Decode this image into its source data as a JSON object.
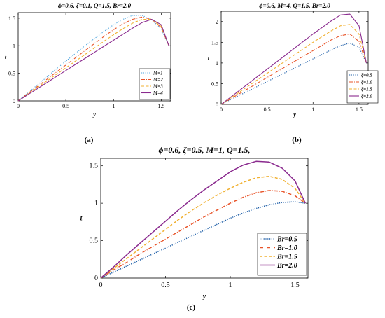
{
  "chart_data": [
    {
      "type": "line",
      "title": "ϕ=0.6, ζ=0.1, Q=1.5, Br=2.0",
      "xlabel": "y",
      "ylabel": "t",
      "xlim": [
        0,
        1.6
      ],
      "ylim": [
        0,
        1.6
      ],
      "xticks": [
        "0",
        "0.5",
        "1",
        "1.5"
      ],
      "yticks": [
        "0",
        "0.5",
        "1",
        "1.5"
      ],
      "grid": false,
      "legend_position": "bottom-right",
      "panel_label": "(a)",
      "series": [
        {
          "name": "M=1",
          "color": "#4aa3df",
          "dash": "dotted",
          "x": [
            0,
            0.1,
            0.2,
            0.3,
            0.4,
            0.5,
            0.6,
            0.7,
            0.8,
            0.9,
            1.0,
            1.1,
            1.2,
            1.3,
            1.4,
            1.5,
            1.58
          ],
          "y": [
            0,
            0.14,
            0.29,
            0.43,
            0.58,
            0.72,
            0.86,
            1.0,
            1.13,
            1.26,
            1.38,
            1.48,
            1.55,
            1.55,
            1.47,
            1.3,
            1.0
          ]
        },
        {
          "name": "M=2",
          "color": "#e8542a",
          "dash": "dashdot",
          "x": [
            0,
            0.1,
            0.2,
            0.3,
            0.4,
            0.5,
            0.6,
            0.7,
            0.8,
            0.9,
            1.0,
            1.1,
            1.2,
            1.3,
            1.4,
            1.5,
            1.58
          ],
          "y": [
            0,
            0.13,
            0.26,
            0.39,
            0.52,
            0.65,
            0.78,
            0.91,
            1.04,
            1.17,
            1.29,
            1.4,
            1.48,
            1.52,
            1.48,
            1.33,
            1.0
          ]
        },
        {
          "name": "M=3",
          "color": "#f0b030",
          "dash": "dashed",
          "x": [
            0,
            0.1,
            0.2,
            0.3,
            0.4,
            0.5,
            0.6,
            0.7,
            0.8,
            0.9,
            1.0,
            1.1,
            1.2,
            1.3,
            1.4,
            1.5,
            1.58
          ],
          "y": [
            0,
            0.12,
            0.24,
            0.36,
            0.48,
            0.6,
            0.72,
            0.84,
            0.96,
            1.08,
            1.2,
            1.31,
            1.41,
            1.48,
            1.48,
            1.35,
            1.0
          ]
        },
        {
          "name": "M=4",
          "color": "#8a2a8e",
          "dash": "solid",
          "x": [
            0,
            0.1,
            0.2,
            0.3,
            0.4,
            0.5,
            0.6,
            0.7,
            0.8,
            0.9,
            1.0,
            1.1,
            1.2,
            1.3,
            1.4,
            1.5,
            1.58
          ],
          "y": [
            0,
            0.11,
            0.22,
            0.33,
            0.44,
            0.55,
            0.66,
            0.77,
            0.88,
            0.99,
            1.1,
            1.21,
            1.32,
            1.42,
            1.48,
            1.38,
            1.0
          ]
        }
      ]
    },
    {
      "type": "line",
      "title": "ϕ=0.6, M=4, Q=1.5, Br=2.0",
      "xlabel": "y",
      "ylabel": "t",
      "xlim": [
        0,
        1.6
      ],
      "ylim": [
        0,
        2.25
      ],
      "xticks": [
        "0",
        "0.5",
        "1",
        "1.5"
      ],
      "yticks": [
        "0",
        "0.5",
        "1",
        "1.5",
        "2"
      ],
      "grid": false,
      "legend_position": "bottom-right",
      "panel_label": "(b)",
      "series": [
        {
          "name": "ζ=0.5",
          "color": "#1f5fa8",
          "dash": "dotted",
          "x": [
            0,
            0.1,
            0.2,
            0.3,
            0.4,
            0.5,
            0.6,
            0.7,
            0.8,
            0.9,
            1.0,
            1.1,
            1.2,
            1.3,
            1.4,
            1.5,
            1.58
          ],
          "y": [
            0,
            0.11,
            0.22,
            0.33,
            0.44,
            0.55,
            0.66,
            0.77,
            0.88,
            0.99,
            1.1,
            1.21,
            1.32,
            1.42,
            1.48,
            1.38,
            1.0
          ]
        },
        {
          "name": "ζ=1.0",
          "color": "#e8542a",
          "dash": "dashdot",
          "x": [
            0,
            0.1,
            0.2,
            0.3,
            0.4,
            0.5,
            0.6,
            0.7,
            0.8,
            0.9,
            1.0,
            1.1,
            1.2,
            1.3,
            1.4,
            1.5,
            1.58
          ],
          "y": [
            0,
            0.13,
            0.26,
            0.39,
            0.52,
            0.65,
            0.78,
            0.91,
            1.04,
            1.17,
            1.3,
            1.43,
            1.56,
            1.66,
            1.7,
            1.52,
            1.0
          ]
        },
        {
          "name": "ζ=1.5",
          "color": "#f0b030",
          "dash": "dashed",
          "x": [
            0,
            0.1,
            0.2,
            0.3,
            0.4,
            0.5,
            0.6,
            0.7,
            0.8,
            0.9,
            1.0,
            1.1,
            1.2,
            1.3,
            1.4,
            1.5,
            1.58
          ],
          "y": [
            0,
            0.15,
            0.3,
            0.45,
            0.6,
            0.75,
            0.9,
            1.05,
            1.2,
            1.35,
            1.5,
            1.64,
            1.78,
            1.9,
            1.93,
            1.7,
            1.0
          ]
        },
        {
          "name": "ζ=2.0",
          "color": "#8a2a8e",
          "dash": "solid",
          "x": [
            0,
            0.1,
            0.2,
            0.3,
            0.4,
            0.5,
            0.6,
            0.7,
            0.8,
            0.9,
            1.0,
            1.1,
            1.2,
            1.3,
            1.4,
            1.5,
            1.58
          ],
          "y": [
            0,
            0.17,
            0.34,
            0.51,
            0.68,
            0.85,
            1.02,
            1.19,
            1.36,
            1.53,
            1.7,
            1.86,
            2.02,
            2.16,
            2.18,
            1.9,
            1.0
          ]
        }
      ]
    },
    {
      "type": "line",
      "title": "ϕ=0.6, ζ=0.5, M=1, Q=1.5,",
      "xlabel": "y",
      "ylabel": "t",
      "xlim": [
        0,
        1.6
      ],
      "ylim": [
        0,
        1.6
      ],
      "xticks": [
        "0",
        "0.5",
        "1",
        "1.5"
      ],
      "yticks": [
        "0",
        "0.5",
        "1",
        "1.5"
      ],
      "grid": false,
      "legend_position": "bottom-right",
      "panel_label": "(c)",
      "series": [
        {
          "name": "Br=0.5",
          "color": "#1f5fa8",
          "dash": "dotted",
          "x": [
            0,
            0.1,
            0.2,
            0.3,
            0.4,
            0.5,
            0.6,
            0.7,
            0.8,
            0.9,
            1.0,
            1.1,
            1.2,
            1.3,
            1.4,
            1.5,
            1.58
          ],
          "y": [
            0,
            0.08,
            0.16,
            0.24,
            0.32,
            0.4,
            0.48,
            0.56,
            0.64,
            0.72,
            0.8,
            0.87,
            0.93,
            0.98,
            1.01,
            1.02,
            1.0
          ]
        },
        {
          "name": "Br=1.0",
          "color": "#e8542a",
          "dash": "dashdot",
          "x": [
            0,
            0.1,
            0.2,
            0.3,
            0.4,
            0.5,
            0.6,
            0.7,
            0.8,
            0.9,
            1.0,
            1.1,
            1.2,
            1.3,
            1.4,
            1.5,
            1.58
          ],
          "y": [
            0,
            0.11,
            0.21,
            0.32,
            0.42,
            0.52,
            0.62,
            0.72,
            0.82,
            0.91,
            1.0,
            1.08,
            1.14,
            1.17,
            1.16,
            1.1,
            1.0
          ]
        },
        {
          "name": "Br=1.5",
          "color": "#f0b030",
          "dash": "dashed",
          "x": [
            0,
            0.1,
            0.2,
            0.3,
            0.4,
            0.5,
            0.6,
            0.7,
            0.8,
            0.9,
            1.0,
            1.1,
            1.2,
            1.3,
            1.4,
            1.5,
            1.58
          ],
          "y": [
            0,
            0.13,
            0.26,
            0.39,
            0.52,
            0.65,
            0.78,
            0.9,
            1.01,
            1.11,
            1.2,
            1.28,
            1.34,
            1.36,
            1.32,
            1.2,
            1.0
          ]
        },
        {
          "name": "Br=2.0",
          "color": "#8a2a8e",
          "dash": "solid",
          "x": [
            0,
            0.1,
            0.2,
            0.3,
            0.4,
            0.5,
            0.6,
            0.7,
            0.8,
            0.9,
            1.0,
            1.1,
            1.2,
            1.3,
            1.4,
            1.5,
            1.58
          ],
          "y": [
            0,
            0.15,
            0.31,
            0.46,
            0.61,
            0.76,
            0.91,
            1.05,
            1.18,
            1.3,
            1.42,
            1.51,
            1.56,
            1.55,
            1.47,
            1.3,
            1.0
          ]
        }
      ]
    }
  ]
}
